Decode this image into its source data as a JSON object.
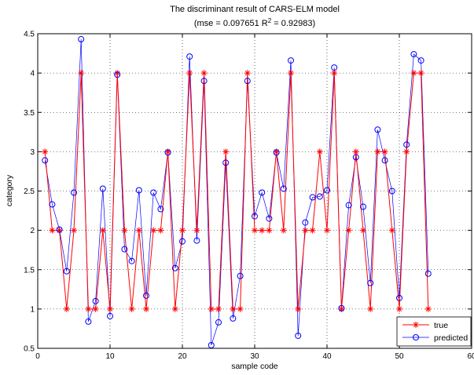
{
  "chart_data": {
    "type": "line",
    "title": "The discriminant result of CARS-ELM model",
    "subtitle_prefix": "(mse = 0.097651 R",
    "subtitle_sup": "2",
    "subtitle_suffix": " = 0.92983)",
    "xlabel": "sample code",
    "ylabel": "category",
    "xlim": [
      0,
      60
    ],
    "ylim": [
      0.5,
      4.5
    ],
    "xticks": [
      0,
      10,
      20,
      30,
      40,
      50,
      60
    ],
    "yticks": [
      0.5,
      1,
      1.5,
      2,
      2.5,
      3,
      3.5,
      4,
      4.5
    ],
    "grid": true,
    "legend_position": "bottom-right",
    "x": [
      1,
      2,
      3,
      4,
      5,
      6,
      7,
      8,
      9,
      10,
      11,
      12,
      13,
      14,
      15,
      16,
      17,
      18,
      19,
      20,
      21,
      22,
      23,
      24,
      25,
      26,
      27,
      28,
      29,
      30,
      31,
      32,
      33,
      34,
      35,
      36,
      37,
      38,
      39,
      40,
      41,
      42,
      43,
      44,
      45,
      46,
      47,
      48,
      49,
      50,
      51,
      52,
      53,
      54
    ],
    "series": [
      {
        "name": "true",
        "color": "#ff0000",
        "marker": "star",
        "values": [
          3,
          2,
          2,
          1,
          2,
          4,
          1,
          1,
          2,
          1,
          4,
          2,
          1,
          2,
          1,
          2,
          2,
          3,
          1,
          2,
          4,
          2,
          4,
          1,
          1,
          3,
          1,
          1,
          4,
          2,
          2,
          2,
          3,
          2,
          4,
          1,
          2,
          2,
          3,
          2,
          4,
          1,
          2,
          3,
          2,
          1,
          3,
          3,
          2,
          1,
          3,
          4,
          4,
          1
        ]
      },
      {
        "name": "predicted",
        "color": "#0000ff",
        "marker": "circle",
        "values": [
          2.89,
          2.33,
          2.01,
          1.48,
          2.48,
          4.43,
          0.84,
          1.1,
          2.53,
          0.91,
          3.98,
          1.76,
          1.61,
          2.51,
          1.17,
          2.48,
          2.27,
          2.99,
          1.52,
          1.86,
          4.21,
          1.87,
          3.9,
          0.54,
          0.83,
          2.86,
          0.88,
          1.42,
          3.9,
          2.18,
          2.48,
          2.15,
          2.99,
          2.53,
          4.16,
          0.66,
          2.1,
          2.42,
          2.43,
          2.51,
          4.07,
          1.01,
          2.32,
          2.93,
          2.3,
          1.33,
          3.28,
          2.89,
          2.5,
          1.14,
          3.09,
          4.24,
          4.16,
          1.45
        ]
      }
    ]
  }
}
